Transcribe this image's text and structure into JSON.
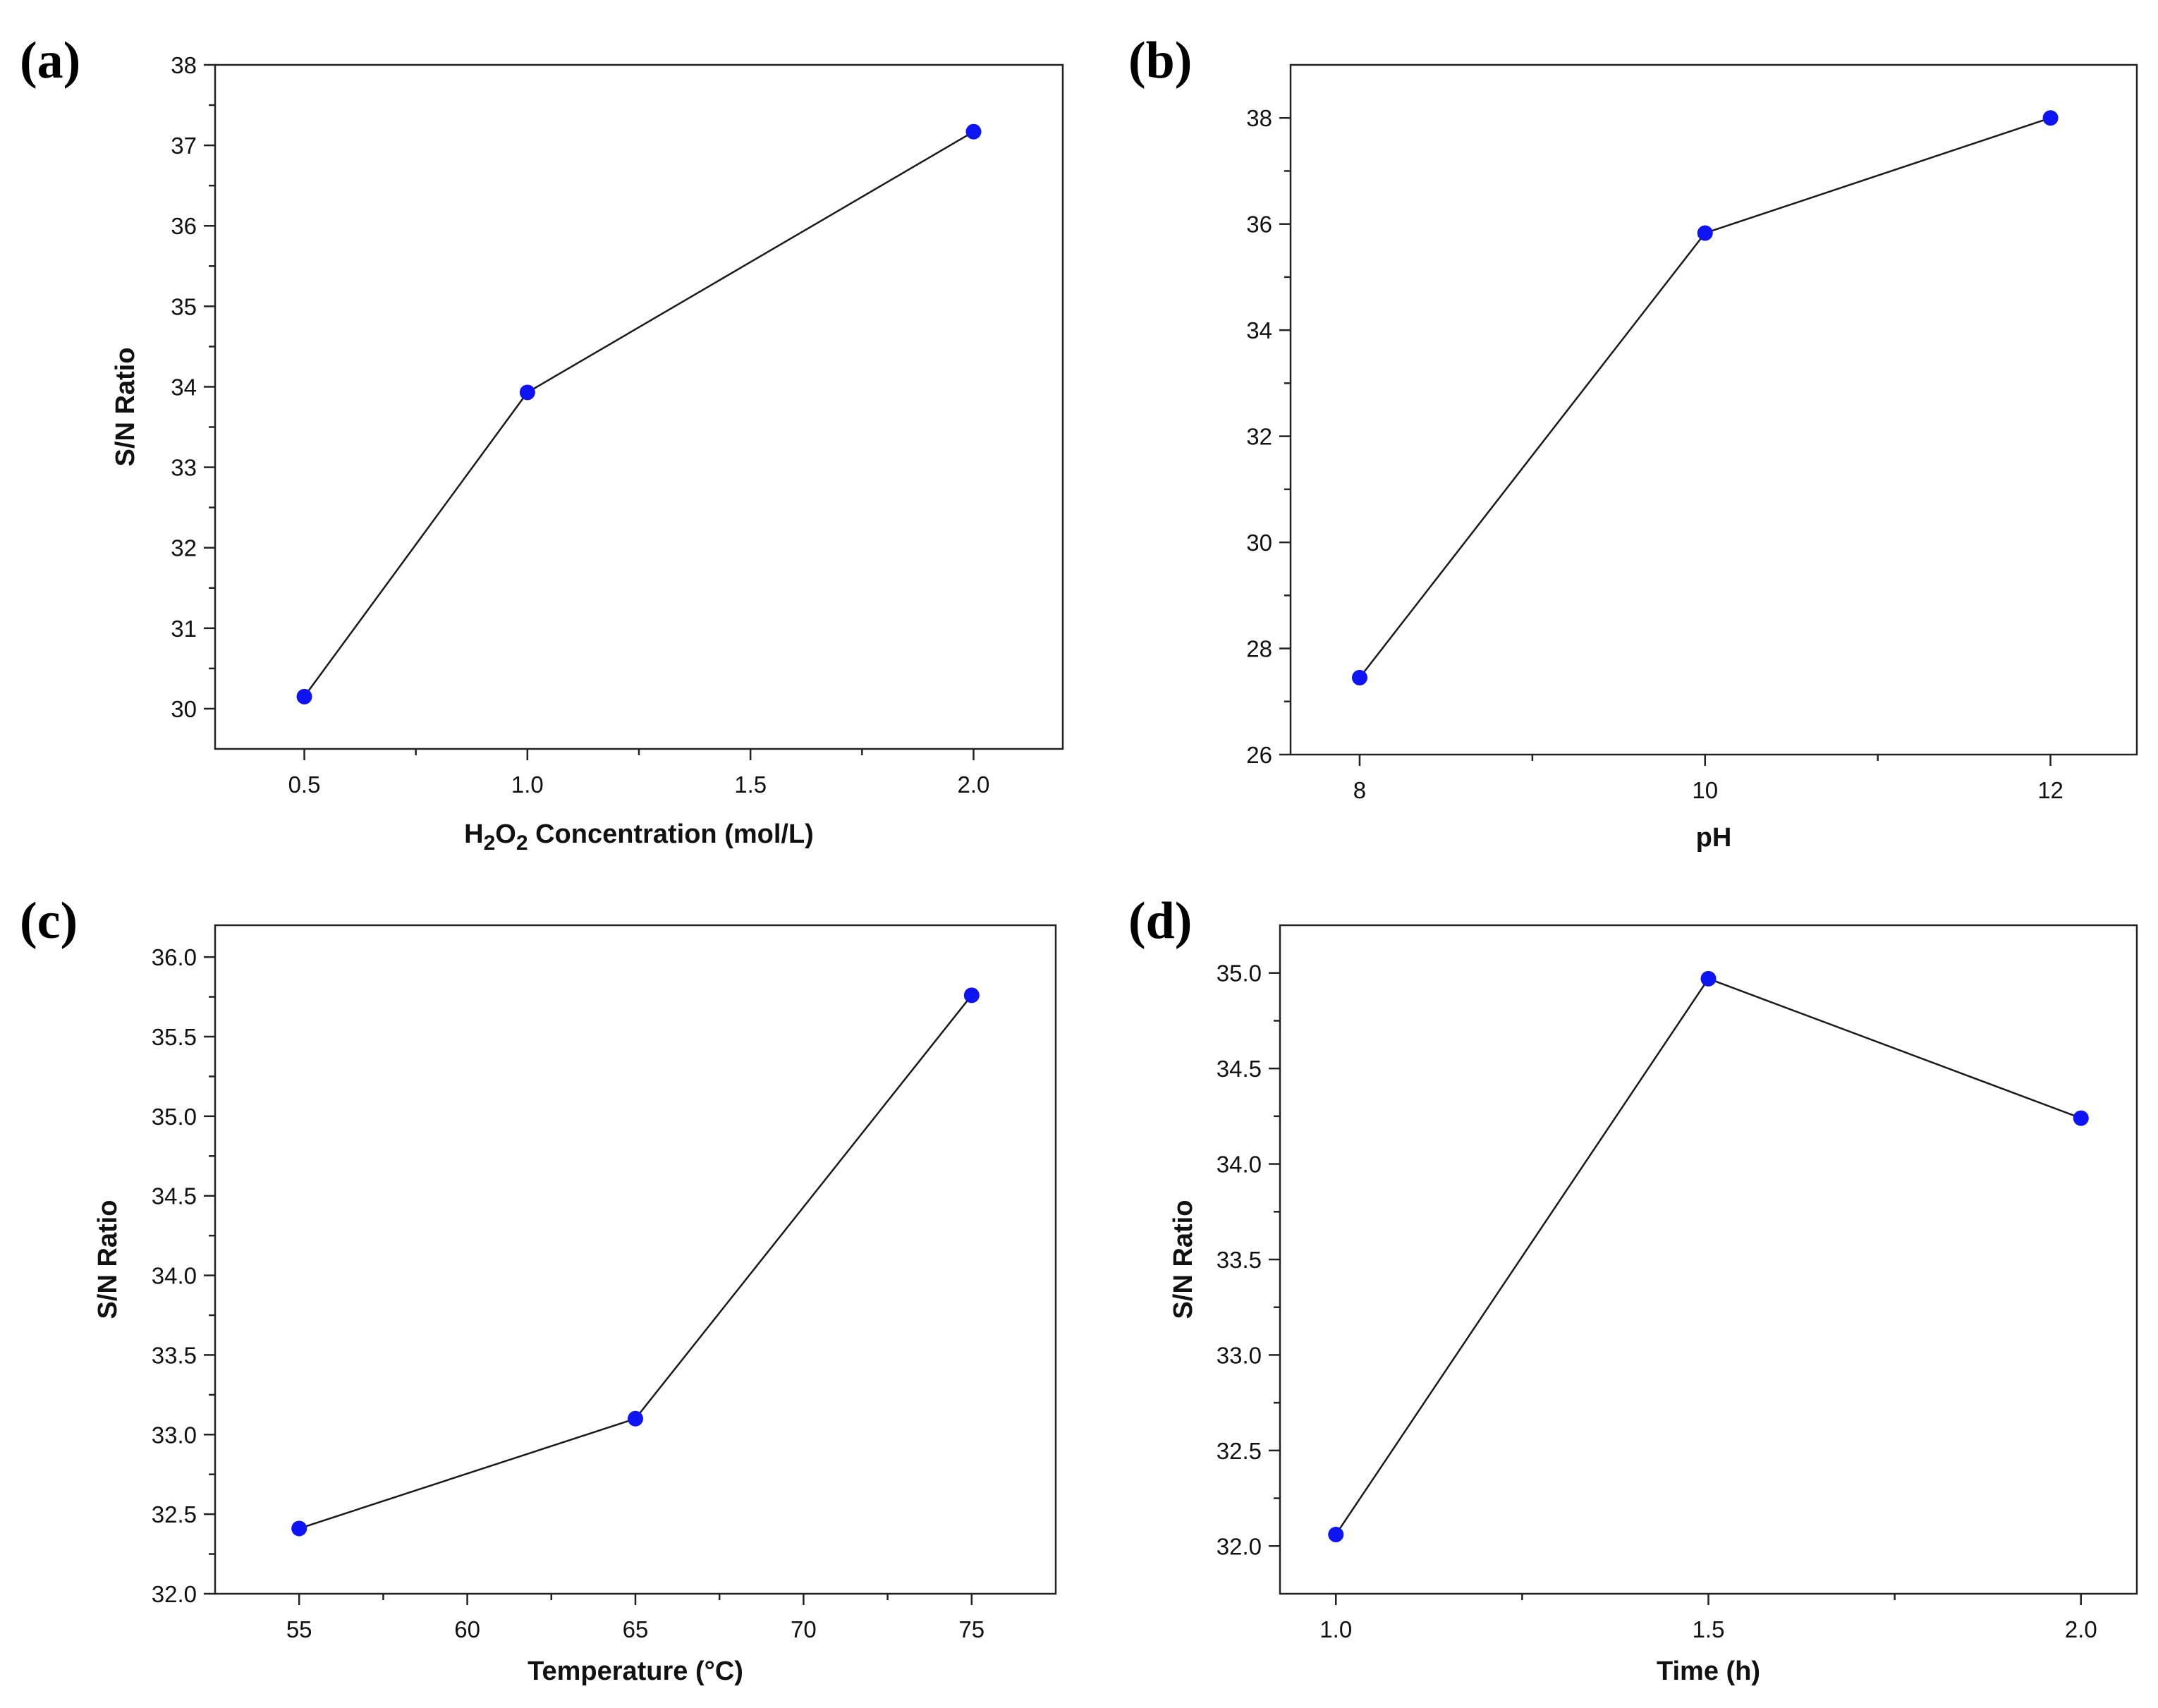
{
  "colors": {
    "marker": "#0f14f5",
    "line": "#1a1a1a",
    "axis": "#222222"
  },
  "chart_data": [
    {
      "type": "line",
      "panel": "(a)",
      "title": "",
      "xlabel": "Concentration (mol/L)",
      "xlabel_chem": {
        "main": "H",
        "sub1": "2",
        "mid": "O",
        "sub2": "2"
      },
      "ylabel": "S/N Ratio",
      "x": [
        0.5,
        1.0,
        2.0
      ],
      "y": [
        30.15,
        33.93,
        37.17
      ],
      "xlim": [
        0.3,
        2.2
      ],
      "ylim": [
        29.5,
        38.0
      ],
      "xticks": [
        0.5,
        1.0,
        1.5,
        2.0
      ],
      "xtick_labels": [
        "0.5",
        "1.0",
        "1.5",
        "2.0"
      ],
      "yticks": [
        30,
        31,
        32,
        33,
        34,
        35,
        36,
        37,
        38
      ],
      "ytick_labels": [
        "30",
        "31",
        "32",
        "33",
        "34",
        "35",
        "36",
        "37",
        "38"
      ],
      "show_ylabel": true
    },
    {
      "type": "line",
      "panel": "(b)",
      "title": "",
      "xlabel": "pH",
      "ylabel": "",
      "x": [
        8,
        10,
        12
      ],
      "y": [
        27.45,
        35.83,
        38.0
      ],
      "xlim": [
        7.6,
        12.5
      ],
      "ylim": [
        26.0,
        39.0
      ],
      "xticks": [
        8,
        10,
        12
      ],
      "xtick_labels": [
        "8",
        "10",
        "12"
      ],
      "yticks": [
        26,
        28,
        30,
        32,
        34,
        36,
        38
      ],
      "ytick_labels": [
        "26",
        "28",
        "30",
        "32",
        "34",
        "36",
        "38"
      ],
      "show_ylabel": false
    },
    {
      "type": "line",
      "panel": "(c)",
      "title": "",
      "xlabel": "Temperature (°C)",
      "ylabel": "S/N Ratio",
      "x": [
        55,
        65,
        75
      ],
      "y": [
        32.41,
        33.1,
        35.76
      ],
      "xlim": [
        52.5,
        77.5
      ],
      "ylim": [
        32.0,
        36.2
      ],
      "xticks": [
        55,
        60,
        65,
        70,
        75
      ],
      "xtick_labels": [
        "55",
        "60",
        "65",
        "70",
        "75"
      ],
      "yticks": [
        32.0,
        32.5,
        33.0,
        33.5,
        34.0,
        34.5,
        35.0,
        35.5,
        36.0
      ],
      "ytick_labels": [
        "32.0",
        "32.5",
        "33.0",
        "33.5",
        "34.0",
        "34.5",
        "35.0",
        "35.5",
        "36.0"
      ],
      "show_ylabel": true
    },
    {
      "type": "line",
      "panel": "(d)",
      "title": "",
      "xlabel": "Time (h)",
      "ylabel": "S/N Ratio",
      "x": [
        1.0,
        1.5,
        2.0
      ],
      "y": [
        32.06,
        34.97,
        34.24
      ],
      "xlim": [
        0.925,
        2.075
      ],
      "ylim": [
        31.75,
        35.25
      ],
      "xticks": [
        1.0,
        1.5,
        2.0
      ],
      "xtick_labels": [
        "1.0",
        "1.5",
        "2.0"
      ],
      "yticks": [
        32.0,
        32.5,
        33.0,
        33.5,
        34.0,
        34.5,
        35.0
      ],
      "ytick_labels": [
        "32.0",
        "32.5",
        "33.0",
        "33.5",
        "34.0",
        "34.5",
        "35.0"
      ],
      "show_ylabel": true
    }
  ]
}
